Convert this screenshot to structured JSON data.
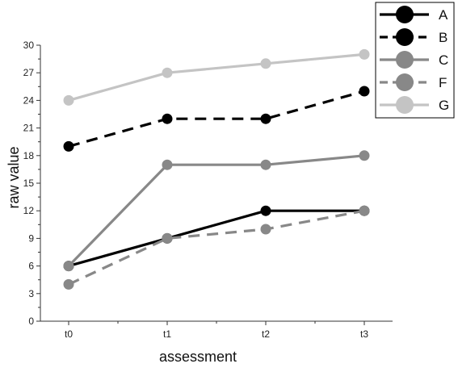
{
  "chart_data": {
    "type": "line",
    "title": "",
    "xlabel": "assessment",
    "ylabel": "raw value",
    "categories": [
      "t0",
      "t1",
      "t2",
      "t3"
    ],
    "ylim": [
      0,
      30
    ],
    "yticks": [
      0,
      3,
      6,
      9,
      12,
      15,
      18,
      21,
      24,
      27,
      30
    ],
    "legend_position": "top-right",
    "grid": false,
    "series": [
      {
        "name": "A",
        "values": [
          6,
          9,
          12,
          12
        ],
        "color": "#000000",
        "dash": "solid"
      },
      {
        "name": "B",
        "values": [
          19,
          22,
          22,
          25
        ],
        "color": "#000000",
        "dash": "dashed"
      },
      {
        "name": "C",
        "values": [
          6,
          17,
          17,
          18
        ],
        "color": "#888888",
        "dash": "solid"
      },
      {
        "name": "F",
        "values": [
          4,
          9,
          10,
          12
        ],
        "color": "#888888",
        "dash": "dashed"
      },
      {
        "name": "G",
        "values": [
          24,
          27,
          28,
          29
        ],
        "color": "#c4c4c4",
        "dash": "solid"
      }
    ]
  }
}
